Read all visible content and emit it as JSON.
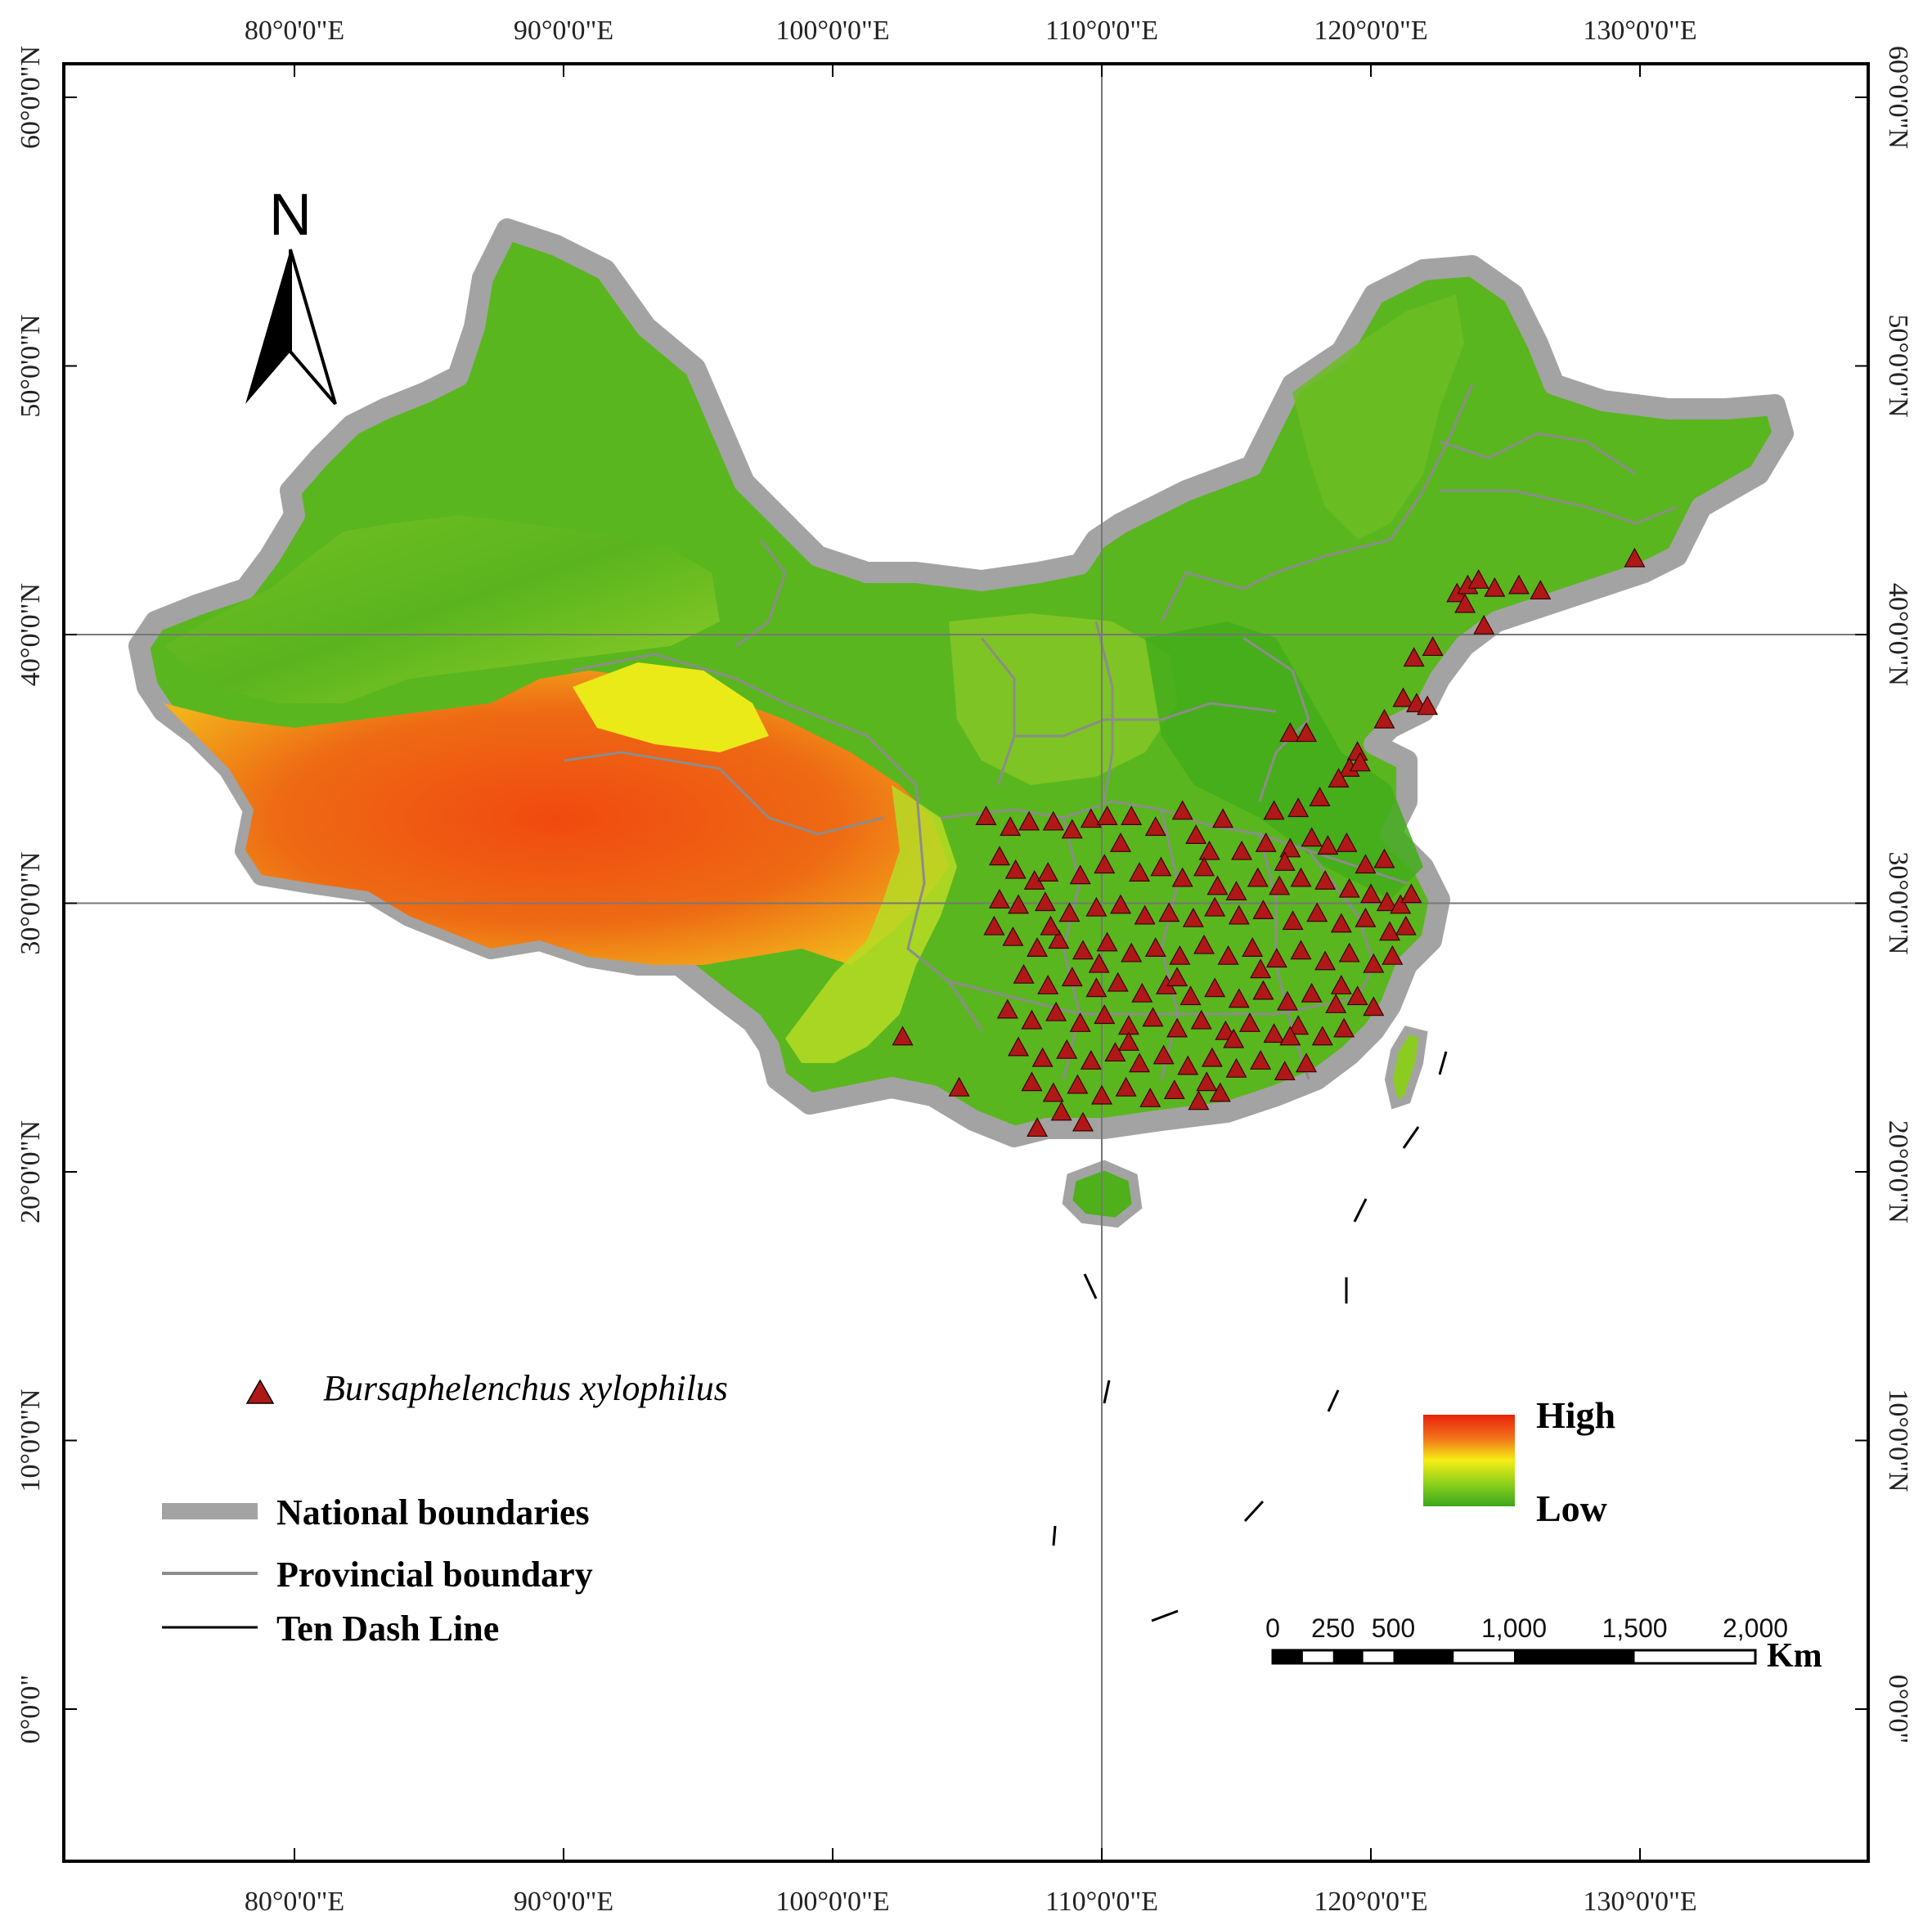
{
  "map": {
    "top_axis_labels": [
      "80°0'0\"E",
      "90°0'0\"E",
      "100°0'0\"E",
      "110°0'0\"E",
      "120°0'0\"E",
      "130°0'0\"E"
    ],
    "bottom_axis_labels": [
      "80°0'0\"E",
      "90°0'0\"E",
      "100°0'0\"E",
      "110°0'0\"E",
      "120°0'0\"E",
      "130°0'0\"E"
    ],
    "left_axis_labels": [
      "60°0'0\"N",
      "50°0'0\"N",
      "40°0'0\"N",
      "30°0'0\"N",
      "20°0'0\"N",
      "10°0'0\"N",
      "0°0'0\""
    ],
    "right_axis_labels": [
      "60°0'0\"N",
      "50°0'0\"N",
      "40°0'0\"N",
      "30°0'0\"N",
      "20°0'0\"N",
      "10°0'0\"N",
      "0°0'0\""
    ],
    "longitudes": [
      80,
      90,
      100,
      110,
      120,
      130
    ],
    "latitudes": [
      60,
      50,
      40,
      30,
      20,
      10,
      0
    ],
    "graticule_lines": {
      "meridian": 110,
      "parallels": [
        40,
        30
      ]
    }
  },
  "north_arrow": {
    "label": "N"
  },
  "legend": {
    "species_label": "Bursaphelenchus xylophilus",
    "national_label": "National boundaries",
    "provincial_label": "Provincial boundary",
    "dash_label": "Ten Dash Line"
  },
  "ramp": {
    "high_label": "High",
    "low_label": "Low"
  },
  "scale_bar": {
    "labels": [
      "0",
      "250",
      "500",
      "1,000",
      "1,500",
      "2,000"
    ],
    "values": [
      0,
      250,
      500,
      1000,
      1500,
      2000
    ],
    "unit": "Km"
  },
  "colors": {
    "national_boundary": "#a3a3a3",
    "provincial_boundary": "#8c8c8c",
    "occurrence_marker": "#b01818",
    "high": "#e8220a",
    "mid": "#f5ee14",
    "low": "#3aa81c"
  },
  "occurrences": [
    [
      123.2,
      41.5
    ],
    [
      123.6,
      41.8
    ],
    [
      124.0,
      42.0
    ],
    [
      124.6,
      41.7
    ],
    [
      125.5,
      41.8
    ],
    [
      126.3,
      41.6
    ],
    [
      129.8,
      42.8
    ],
    [
      123.5,
      41.1
    ],
    [
      124.2,
      40.3
    ],
    [
      122.3,
      39.5
    ],
    [
      121.6,
      39.1
    ],
    [
      121.2,
      37.6
    ],
    [
      121.7,
      37.4
    ],
    [
      122.1,
      37.3
    ],
    [
      120.5,
      36.8
    ],
    [
      117.0,
      36.3
    ],
    [
      117.6,
      36.3
    ],
    [
      119.5,
      35.6
    ],
    [
      119.2,
      35.0
    ],
    [
      118.8,
      34.6
    ],
    [
      119.6,
      35.2
    ],
    [
      106.6,
      32.8
    ],
    [
      107.3,
      33.0
    ],
    [
      108.2,
      33.0
    ],
    [
      108.9,
      32.7
    ],
    [
      109.6,
      33.1
    ],
    [
      110.2,
      33.2
    ],
    [
      111.1,
      33.2
    ],
    [
      112.0,
      32.8
    ],
    [
      113.5,
      32.5
    ],
    [
      114.0,
      31.9
    ],
    [
      115.2,
      31.9
    ],
    [
      116.1,
      32.2
    ],
    [
      117.0,
      32.0
    ],
    [
      117.8,
      32.4
    ],
    [
      118.4,
      32.1
    ],
    [
      119.1,
      32.2
    ],
    [
      106.8,
      31.2
    ],
    [
      107.5,
      30.8
    ],
    [
      108.0,
      31.1
    ],
    [
      109.2,
      31.0
    ],
    [
      110.1,
      31.4
    ],
    [
      111.4,
      31.1
    ],
    [
      112.2,
      31.3
    ],
    [
      113.0,
      30.9
    ],
    [
      114.3,
      30.6
    ],
    [
      115.0,
      30.4
    ],
    [
      115.8,
      30.9
    ],
    [
      116.6,
      30.6
    ],
    [
      117.4,
      30.9
    ],
    [
      118.3,
      30.8
    ],
    [
      119.2,
      30.5
    ],
    [
      120.0,
      30.3
    ],
    [
      120.6,
      30.0
    ],
    [
      121.1,
      29.9
    ],
    [
      121.5,
      30.3
    ],
    [
      106.2,
      30.1
    ],
    [
      106.9,
      29.9
    ],
    [
      107.9,
      30.0
    ],
    [
      108.8,
      29.6
    ],
    [
      109.8,
      29.8
    ],
    [
      110.7,
      29.9
    ],
    [
      111.6,
      29.5
    ],
    [
      112.5,
      29.6
    ],
    [
      113.4,
      29.4
    ],
    [
      114.2,
      29.8
    ],
    [
      115.1,
      29.5
    ],
    [
      116.0,
      29.7
    ],
    [
      117.1,
      29.3
    ],
    [
      118.0,
      29.6
    ],
    [
      118.9,
      29.2
    ],
    [
      119.8,
      29.4
    ],
    [
      120.7,
      28.9
    ],
    [
      121.3,
      29.1
    ],
    [
      106.7,
      28.7
    ],
    [
      107.6,
      28.3
    ],
    [
      108.4,
      28.6
    ],
    [
      109.3,
      28.2
    ],
    [
      110.2,
      28.5
    ],
    [
      111.1,
      28.1
    ],
    [
      112.0,
      28.3
    ],
    [
      112.9,
      28.0
    ],
    [
      113.8,
      28.4
    ],
    [
      114.7,
      28.0
    ],
    [
      115.6,
      28.3
    ],
    [
      116.5,
      27.9
    ],
    [
      117.4,
      28.2
    ],
    [
      118.3,
      27.8
    ],
    [
      119.2,
      28.1
    ],
    [
      120.1,
      27.7
    ],
    [
      120.8,
      28.0
    ],
    [
      107.1,
      27.3
    ],
    [
      108.0,
      26.9
    ],
    [
      108.9,
      27.2
    ],
    [
      109.8,
      26.8
    ],
    [
      110.6,
      27.0
    ],
    [
      111.5,
      26.6
    ],
    [
      112.4,
      26.9
    ],
    [
      113.3,
      26.5
    ],
    [
      114.2,
      26.8
    ],
    [
      115.1,
      26.4
    ],
    [
      116.0,
      26.7
    ],
    [
      116.9,
      26.3
    ],
    [
      117.8,
      26.6
    ],
    [
      118.7,
      26.2
    ],
    [
      119.5,
      26.5
    ],
    [
      120.1,
      26.1
    ],
    [
      106.5,
      26.0
    ],
    [
      107.4,
      25.6
    ],
    [
      108.3,
      25.9
    ],
    [
      109.2,
      25.5
    ],
    [
      110.1,
      25.8
    ],
    [
      111.0,
      25.4
    ],
    [
      111.9,
      25.7
    ],
    [
      112.8,
      25.3
    ],
    [
      113.7,
      25.6
    ],
    [
      114.6,
      25.2
    ],
    [
      115.5,
      25.5
    ],
    [
      116.4,
      25.1
    ],
    [
      117.3,
      25.4
    ],
    [
      118.2,
      25.0
    ],
    [
      119.0,
      25.3
    ],
    [
      106.9,
      24.6
    ],
    [
      107.8,
      24.2
    ],
    [
      108.7,
      24.5
    ],
    [
      109.6,
      24.1
    ],
    [
      110.5,
      24.4
    ],
    [
      111.4,
      24.0
    ],
    [
      112.3,
      24.3
    ],
    [
      113.2,
      23.9
    ],
    [
      114.1,
      24.2
    ],
    [
      115.0,
      23.8
    ],
    [
      115.9,
      24.1
    ],
    [
      116.8,
      23.7
    ],
    [
      117.6,
      24.0
    ],
    [
      107.4,
      23.3
    ],
    [
      108.2,
      22.9
    ],
    [
      109.1,
      23.2
    ],
    [
      110.0,
      22.8
    ],
    [
      110.9,
      23.1
    ],
    [
      111.8,
      22.7
    ],
    [
      112.7,
      23.0
    ],
    [
      113.6,
      22.6
    ],
    [
      114.4,
      22.9
    ],
    [
      108.5,
      22.2
    ],
    [
      109.3,
      21.8
    ],
    [
      107.6,
      21.6
    ],
    [
      102.6,
      25.0
    ],
    [
      104.7,
      23.1
    ],
    [
      113.0,
      33.4
    ],
    [
      114.5,
      33.1
    ],
    [
      116.4,
      33.4
    ],
    [
      117.3,
      33.5
    ],
    [
      118.1,
      33.9
    ],
    [
      105.7,
      33.2
    ],
    [
      106.2,
      31.7
    ],
    [
      119.8,
      31.4
    ],
    [
      120.5,
      31.6
    ],
    [
      110.7,
      32.2
    ],
    [
      113.8,
      31.3
    ],
    [
      116.8,
      31.5
    ],
    [
      108.1,
      29.1
    ],
    [
      112.8,
      27.2
    ],
    [
      118.9,
      26.9
    ],
    [
      115.9,
      27.5
    ],
    [
      114.9,
      24.9
    ],
    [
      117.0,
      25.0
    ],
    [
      111.0,
      24.8
    ],
    [
      113.9,
      23.3
    ],
    [
      109.9,
      27.7
    ],
    [
      106.0,
      29.1
    ]
  ]
}
